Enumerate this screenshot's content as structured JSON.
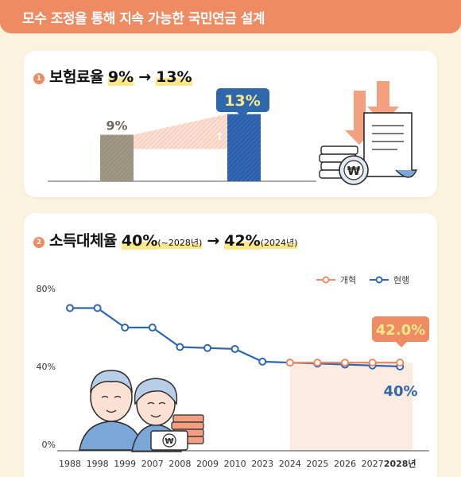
{
  "banner": {
    "title": "모수 조정을 통해 지속 가능한 국민연금 설계"
  },
  "section1": {
    "number": "1",
    "title": "보험료율",
    "from": "9%",
    "arrow": "→",
    "to": "13%",
    "bar_from_label": "9%",
    "bar_to_label": "13%",
    "currency_symbol": "₩"
  },
  "section2": {
    "number": "2",
    "title": "소득대체율",
    "from": "40%",
    "from_note": "(~2028년)",
    "arrow": "→",
    "to": "42%",
    "to_note": "(2024년)",
    "currency_symbol": "₩"
  },
  "colors": {
    "reform": "#ee8b63",
    "current": "#2f67ad",
    "highlight": "#fbe88a",
    "bar_old": "#9a927e",
    "bar_new": "#2a5ea8"
  },
  "chart_data": [
    {
      "type": "bar",
      "categories": [
        "9%",
        "13%"
      ],
      "values": [
        9,
        13
      ],
      "title": "보험료율 9% → 13%",
      "xlabel": "",
      "ylabel": "",
      "ylim": [
        0,
        14
      ]
    },
    {
      "type": "line",
      "x": [
        "1988",
        "1998",
        "1999",
        "2007",
        "2008",
        "2009",
        "2010",
        "2023",
        "2024",
        "2025",
        "2026",
        "2027",
        "2028년"
      ],
      "series": [
        {
          "name": "현행",
          "values": [
            70,
            70,
            60,
            60,
            50,
            49.5,
            49,
            42.5,
            42,
            41.5,
            41,
            40.5,
            40
          ]
        },
        {
          "name": "개혁",
          "values": [
            null,
            null,
            null,
            null,
            null,
            null,
            null,
            null,
            42,
            42,
            42,
            42,
            42
          ]
        }
      ],
      "yticks": [
        "80%",
        "40%",
        "0%"
      ],
      "ylim": [
        0,
        80
      ],
      "legend": "top-right",
      "grid": false,
      "annotations": [
        "42.0%",
        "40%"
      ]
    }
  ]
}
